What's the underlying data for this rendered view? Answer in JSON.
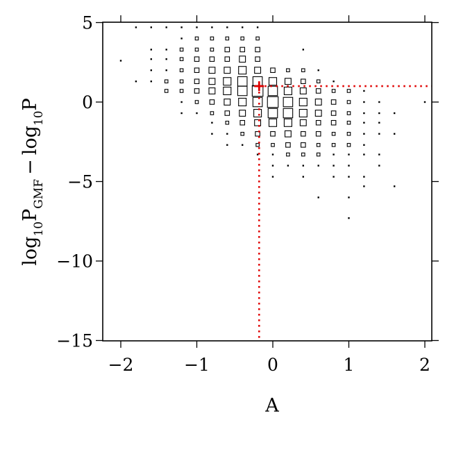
{
  "chart_data": {
    "type": "scatter",
    "xlabel": "A",
    "ylabel": {
      "base": "log",
      "sub1": "10",
      "p1": "P",
      "sub2": "GMF",
      "minus": "−",
      "base2": "log",
      "sub3": "10",
      "p2": "P"
    },
    "xlim": [
      -2.2,
      2.1
    ],
    "ylim": [
      -15,
      5
    ],
    "xticks": [
      {
        "value": -2,
        "label": "−2"
      },
      {
        "value": -1,
        "label": "−1"
      },
      {
        "value": 0,
        "label": "0"
      },
      {
        "value": 1,
        "label": "1"
      },
      {
        "value": 2,
        "label": "2"
      }
    ],
    "yticks": [
      {
        "value": -15,
        "label": "−15"
      },
      {
        "value": -10,
        "label": "−10"
      },
      {
        "value": -5,
        "label": "−5"
      },
      {
        "value": 0,
        "label": "0"
      },
      {
        "value": 5,
        "label": "5"
      }
    ],
    "reference_point": {
      "x": -0.18,
      "y": 1.0
    },
    "columns": [
      {
        "x": -2.0,
        "cells": [
          [
            2.6,
            1
          ]
        ]
      },
      {
        "x": -1.8,
        "cells": [
          [
            4.7,
            1
          ],
          [
            1.3,
            1
          ]
        ]
      },
      {
        "x": -1.6,
        "cells": [
          [
            4.7,
            1
          ],
          [
            3.3,
            1
          ],
          [
            2.7,
            1
          ],
          [
            2.0,
            1
          ],
          [
            1.3,
            1
          ]
        ]
      },
      {
        "x": -1.4,
        "cells": [
          [
            4.7,
            1
          ],
          [
            3.3,
            1
          ],
          [
            2.7,
            1
          ],
          [
            2.0,
            1
          ],
          [
            1.3,
            2
          ],
          [
            0.7,
            2
          ]
        ]
      },
      {
        "x": -1.2,
        "cells": [
          [
            4.7,
            1
          ],
          [
            4.0,
            1
          ],
          [
            3.3,
            2
          ],
          [
            2.7,
            2
          ],
          [
            2.0,
            2
          ],
          [
            1.3,
            2
          ],
          [
            0.7,
            2
          ],
          [
            0.0,
            1
          ],
          [
            -0.7,
            1
          ]
        ]
      },
      {
        "x": -1.0,
        "cells": [
          [
            4.7,
            1
          ],
          [
            4.0,
            2
          ],
          [
            3.3,
            2
          ],
          [
            2.7,
            3
          ],
          [
            2.0,
            3
          ],
          [
            1.3,
            3
          ],
          [
            0.7,
            3
          ],
          [
            0.0,
            2
          ],
          [
            -0.7,
            1
          ]
        ]
      },
      {
        "x": -0.8,
        "cells": [
          [
            4.7,
            1
          ],
          [
            4.0,
            2
          ],
          [
            3.3,
            2
          ],
          [
            2.7,
            3
          ],
          [
            2.0,
            4
          ],
          [
            1.3,
            4
          ],
          [
            0.7,
            4
          ],
          [
            0.0,
            3
          ],
          [
            -0.7,
            2
          ],
          [
            -1.3,
            1
          ],
          [
            -2.0,
            1
          ]
        ]
      },
      {
        "x": -0.6,
        "cells": [
          [
            4.7,
            1
          ],
          [
            4.0,
            2
          ],
          [
            3.3,
            3
          ],
          [
            2.7,
            3
          ],
          [
            2.0,
            4
          ],
          [
            1.3,
            5
          ],
          [
            0.7,
            5
          ],
          [
            0.0,
            4
          ],
          [
            -0.7,
            3
          ],
          [
            -1.3,
            2
          ],
          [
            -2.0,
            1
          ],
          [
            -2.7,
            1
          ]
        ]
      },
      {
        "x": -0.4,
        "cells": [
          [
            4.7,
            1
          ],
          [
            4.0,
            2
          ],
          [
            3.3,
            3
          ],
          [
            2.7,
            4
          ],
          [
            2.0,
            5
          ],
          [
            1.3,
            6
          ],
          [
            0.7,
            6
          ],
          [
            0.0,
            5
          ],
          [
            -0.7,
            4
          ],
          [
            -1.3,
            3
          ],
          [
            -2.0,
            2
          ],
          [
            -2.7,
            1
          ]
        ]
      },
      {
        "x": -0.2,
        "cells": [
          [
            4.7,
            1
          ],
          [
            4.0,
            2
          ],
          [
            3.3,
            3
          ],
          [
            2.7,
            3
          ],
          [
            2.0,
            4
          ],
          [
            1.3,
            6
          ],
          [
            0.7,
            7
          ],
          [
            0.0,
            6
          ],
          [
            -0.7,
            5
          ],
          [
            -1.3,
            4
          ],
          [
            -2.0,
            3
          ],
          [
            -2.7,
            2
          ],
          [
            -3.3,
            1
          ]
        ]
      },
      {
        "x": 0.0,
        "cells": [
          [
            2.0,
            3
          ],
          [
            1.3,
            5
          ],
          [
            0.7,
            6
          ],
          [
            0.0,
            7
          ],
          [
            -0.7,
            6
          ],
          [
            -1.3,
            5
          ],
          [
            -2.0,
            3
          ],
          [
            -2.7,
            2
          ],
          [
            -3.3,
            1
          ],
          [
            -4.0,
            1
          ],
          [
            -4.7,
            1
          ]
        ]
      },
      {
        "x": 0.2,
        "cells": [
          [
            2.0,
            2
          ],
          [
            1.3,
            4
          ],
          [
            0.7,
            5
          ],
          [
            0.0,
            6
          ],
          [
            -0.7,
            6
          ],
          [
            -1.3,
            5
          ],
          [
            -2.0,
            4
          ],
          [
            -2.7,
            3
          ],
          [
            -3.3,
            2
          ],
          [
            -4.0,
            1
          ]
        ]
      },
      {
        "x": 0.4,
        "cells": [
          [
            3.3,
            1
          ],
          [
            2.0,
            2
          ],
          [
            1.3,
            3
          ],
          [
            0.7,
            4
          ],
          [
            0.0,
            5
          ],
          [
            -0.7,
            5
          ],
          [
            -1.3,
            4
          ],
          [
            -2.0,
            3
          ],
          [
            -2.7,
            3
          ],
          [
            -3.3,
            2
          ],
          [
            -4.0,
            1
          ],
          [
            -4.7,
            1
          ]
        ]
      },
      {
        "x": 0.6,
        "cells": [
          [
            2.0,
            1
          ],
          [
            1.3,
            2
          ],
          [
            0.7,
            3
          ],
          [
            0.0,
            4
          ],
          [
            -0.7,
            4
          ],
          [
            -1.3,
            3
          ],
          [
            -2.0,
            3
          ],
          [
            -2.7,
            2
          ],
          [
            -3.3,
            2
          ],
          [
            -4.0,
            1
          ],
          [
            -6.0,
            1
          ]
        ]
      },
      {
        "x": 0.8,
        "cells": [
          [
            1.3,
            1
          ],
          [
            0.7,
            2
          ],
          [
            0.0,
            3
          ],
          [
            -0.7,
            3
          ],
          [
            -1.3,
            3
          ],
          [
            -2.0,
            2
          ],
          [
            -2.7,
            2
          ],
          [
            -3.3,
            1
          ],
          [
            -4.0,
            1
          ],
          [
            -4.7,
            1
          ]
        ]
      },
      {
        "x": 1.0,
        "cells": [
          [
            0.7,
            2
          ],
          [
            0.0,
            2
          ],
          [
            -0.7,
            2
          ],
          [
            -1.3,
            2
          ],
          [
            -2.0,
            2
          ],
          [
            -2.7,
            2
          ],
          [
            -3.3,
            1
          ],
          [
            -4.0,
            1
          ],
          [
            -4.7,
            1
          ],
          [
            -6.0,
            1
          ],
          [
            -7.3,
            1
          ]
        ]
      },
      {
        "x": 1.2,
        "cells": [
          [
            0.7,
            1
          ],
          [
            0.0,
            1
          ],
          [
            -0.7,
            1
          ],
          [
            -1.3,
            1
          ],
          [
            -2.0,
            1
          ],
          [
            -2.7,
            1
          ],
          [
            -3.3,
            1
          ],
          [
            -4.7,
            1
          ],
          [
            -5.3,
            1
          ]
        ]
      },
      {
        "x": 1.4,
        "cells": [
          [
            0.0,
            1
          ],
          [
            -0.7,
            1
          ],
          [
            -1.3,
            1
          ],
          [
            -2.0,
            1
          ],
          [
            -3.3,
            1
          ],
          [
            -4.0,
            1
          ]
        ]
      },
      {
        "x": 1.6,
        "cells": [
          [
            -0.7,
            1
          ],
          [
            -2.0,
            1
          ],
          [
            -5.3,
            1
          ]
        ]
      },
      {
        "x": 2.0,
        "cells": [
          [
            0.0,
            1
          ]
        ]
      }
    ]
  }
}
